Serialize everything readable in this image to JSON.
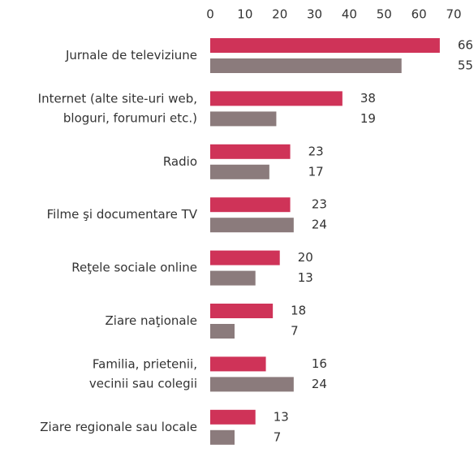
{
  "chart_data": {
    "type": "bar",
    "orientation": "horizontal",
    "categories": [
      "Jurnale de televiziune",
      [
        "Internet (alte site-uri web,",
        "bloguri, forumuri etc.)"
      ],
      "Radio",
      "Filme şi documentare TV",
      "Reţele sociale online",
      "Ziare naţionale",
      [
        "Familia, prietenii,",
        "vecinii sau colegii"
      ],
      "Ziare regionale sau locale"
    ],
    "series": [
      {
        "color": "#cf3358",
        "values": [
          66,
          38,
          23,
          23,
          20,
          18,
          16,
          13
        ]
      },
      {
        "color": "#8b7b7c",
        "values": [
          55,
          19,
          17,
          24,
          13,
          7,
          24,
          7
        ]
      }
    ],
    "xlim": [
      0,
      70
    ],
    "xticks": [
      0,
      10,
      20,
      30,
      40,
      50,
      60,
      70
    ]
  }
}
